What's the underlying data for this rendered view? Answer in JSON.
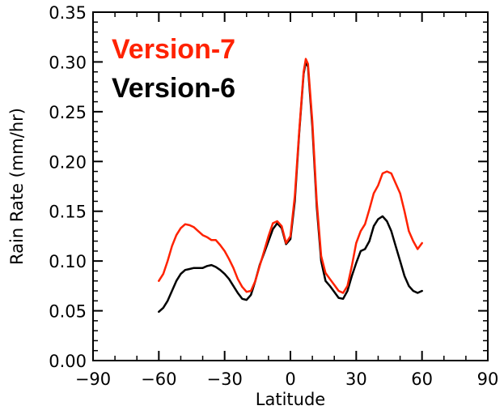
{
  "chart_data": {
    "type": "line",
    "xlabel": "Latitude",
    "ylabel": "Rain Rate (mm/hr)",
    "xlim": [
      -90,
      90
    ],
    "ylim": [
      0,
      0.35
    ],
    "xticks": [
      -90,
      -60,
      -30,
      0,
      30,
      60,
      90
    ],
    "yticks": [
      0.0,
      0.05,
      0.1,
      0.15,
      0.2,
      0.25,
      0.3,
      0.35
    ],
    "xtick_labels": [
      "−90",
      "−60",
      "−30",
      "0",
      "30",
      "60",
      "90"
    ],
    "ytick_labels": [
      "0.00",
      "0.05",
      "0.10",
      "0.15",
      "0.20",
      "0.25",
      "0.30",
      "0.35"
    ],
    "grid": false,
    "legend_position": "top-left",
    "series": [
      {
        "name": "Version-7",
        "color": "#ff2200",
        "x": [
          -60,
          -58,
          -56,
          -54,
          -52,
          -50,
          -48,
          -46,
          -44,
          -42,
          -40,
          -38,
          -36,
          -34,
          -32,
          -30,
          -28,
          -26,
          -24,
          -22,
          -20,
          -18,
          -16,
          -14,
          -12,
          -10,
          -8,
          -6,
          -4,
          -2,
          0,
          2,
          4,
          6,
          7,
          8,
          10,
          12,
          14,
          16,
          18,
          20,
          22,
          24,
          26,
          28,
          30,
          32,
          34,
          36,
          38,
          40,
          42,
          44,
          46,
          48,
          50,
          52,
          54,
          56,
          58,
          60
        ],
        "y": [
          0.08,
          0.087,
          0.1,
          0.115,
          0.126,
          0.133,
          0.137,
          0.136,
          0.134,
          0.13,
          0.126,
          0.124,
          0.121,
          0.121,
          0.116,
          0.11,
          0.102,
          0.093,
          0.082,
          0.074,
          0.069,
          0.07,
          0.08,
          0.095,
          0.11,
          0.125,
          0.138,
          0.14,
          0.135,
          0.118,
          0.125,
          0.165,
          0.23,
          0.29,
          0.303,
          0.298,
          0.24,
          0.16,
          0.105,
          0.088,
          0.082,
          0.076,
          0.07,
          0.068,
          0.075,
          0.095,
          0.118,
          0.13,
          0.137,
          0.152,
          0.168,
          0.176,
          0.188,
          0.19,
          0.188,
          0.178,
          0.168,
          0.15,
          0.13,
          0.12,
          0.112,
          0.118
        ]
      },
      {
        "name": "Version-6",
        "color": "#000000",
        "x": [
          -60,
          -58,
          -56,
          -54,
          -52,
          -50,
          -48,
          -46,
          -44,
          -42,
          -40,
          -38,
          -36,
          -34,
          -32,
          -30,
          -28,
          -26,
          -24,
          -22,
          -20,
          -18,
          -16,
          -14,
          -12,
          -10,
          -8,
          -6,
          -4,
          -2,
          0,
          2,
          4,
          6,
          7,
          8,
          10,
          12,
          14,
          16,
          18,
          20,
          22,
          24,
          26,
          28,
          30,
          32,
          34,
          36,
          38,
          40,
          42,
          44,
          46,
          48,
          50,
          52,
          54,
          56,
          58,
          60
        ],
        "y": [
          0.049,
          0.053,
          0.06,
          0.07,
          0.08,
          0.087,
          0.091,
          0.092,
          0.093,
          0.093,
          0.093,
          0.095,
          0.096,
          0.094,
          0.091,
          0.087,
          0.082,
          0.075,
          0.068,
          0.062,
          0.061,
          0.066,
          0.08,
          0.096,
          0.108,
          0.12,
          0.132,
          0.138,
          0.133,
          0.117,
          0.122,
          0.16,
          0.228,
          0.288,
          0.3,
          0.295,
          0.235,
          0.155,
          0.1,
          0.08,
          0.075,
          0.069,
          0.063,
          0.062,
          0.07,
          0.085,
          0.098,
          0.11,
          0.112,
          0.12,
          0.135,
          0.142,
          0.145,
          0.14,
          0.13,
          0.115,
          0.1,
          0.085,
          0.075,
          0.07,
          0.068,
          0.07
        ]
      }
    ]
  }
}
